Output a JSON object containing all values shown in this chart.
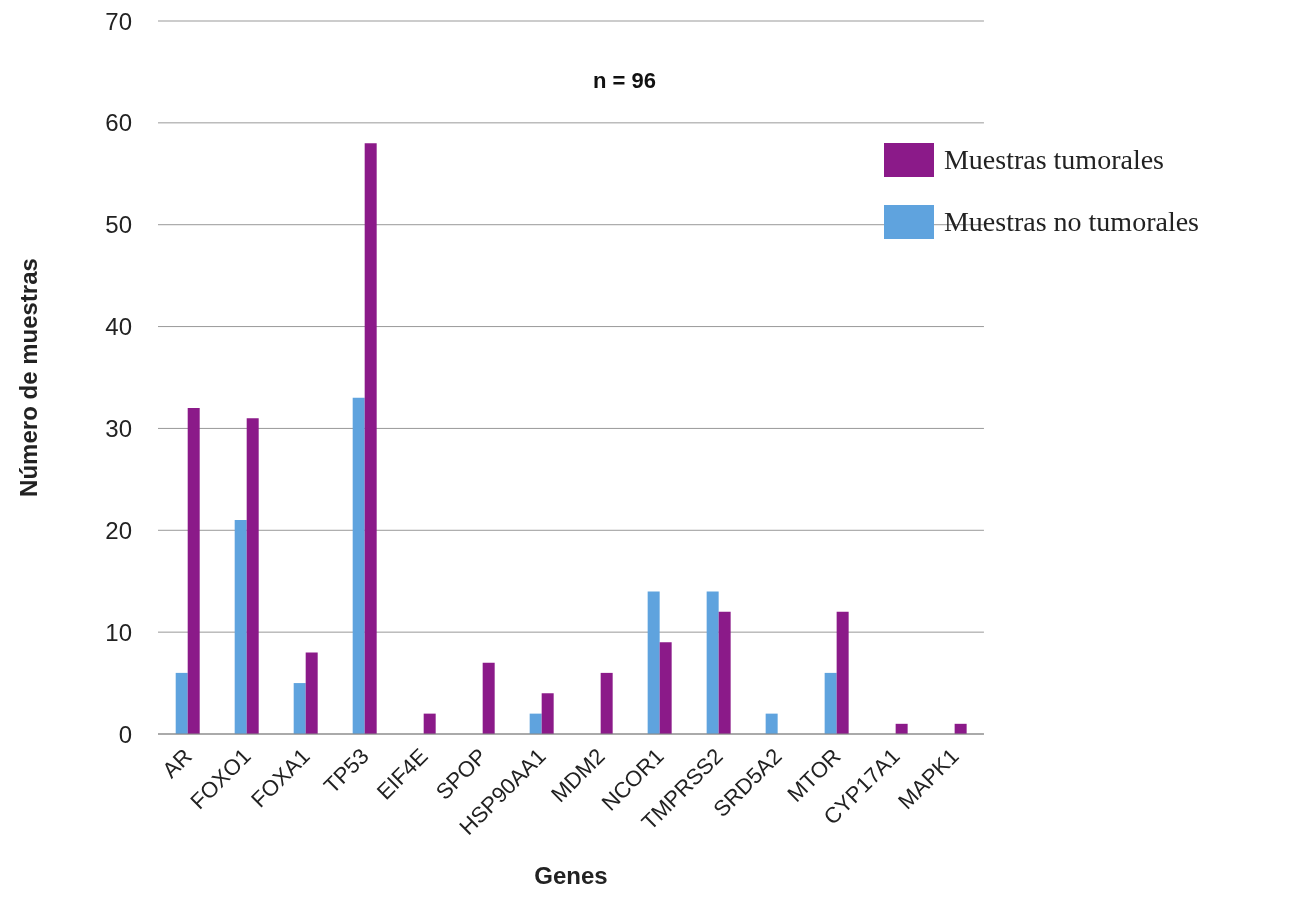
{
  "chart_data": {
    "type": "bar",
    "xlabel": "Genes",
    "ylabel": "Número de muestras",
    "annotations": [
      "n = 96"
    ],
    "categories": [
      "AR",
      "FOXO1",
      "FOXA1",
      "TP53",
      "EIF4E",
      "SPOP",
      "HSP90AA1",
      "MDM2",
      "NCOR1",
      "TMPRSS2",
      "SRD5A2",
      "MTOR",
      "CYP17A1",
      "MAPK1"
    ],
    "series": [
      {
        "name": "Muestras no tumorales",
        "color": "#5fa3de",
        "values": [
          6,
          21,
          5,
          33,
          0,
          0,
          2,
          0,
          14,
          14,
          2,
          6,
          0,
          0
        ]
      },
      {
        "name": "Muestras tumorales",
        "color": "#8b1a89",
        "values": [
          32,
          31,
          8,
          58,
          2,
          7,
          4,
          6,
          9,
          12,
          0,
          12,
          1,
          1
        ]
      }
    ],
    "ylim": [
      0,
      70
    ],
    "yticks": [
      0,
      10,
      20,
      30,
      40,
      50,
      60,
      70
    ],
    "grid": "y",
    "legend": "top right"
  }
}
